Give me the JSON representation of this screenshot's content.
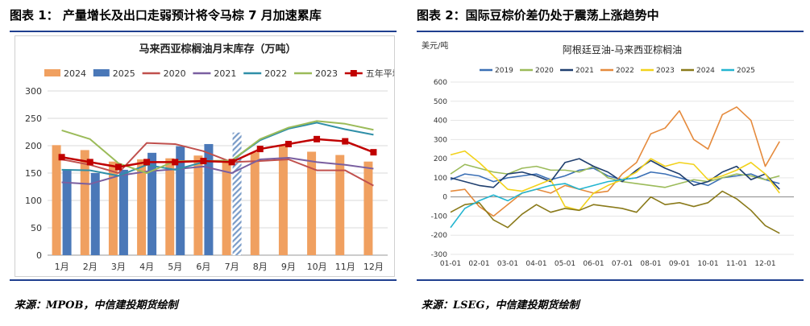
{
  "left": {
    "figure_title": "图表 1：  产量增长及出口走弱预计将令马棕 7 月加速累库",
    "source": "来源：MPOB，中信建投期货绘制",
    "chart_data": {
      "type": "bar",
      "title": "马来西亚棕榈油月末库存（万吨）",
      "categories": [
        "1月",
        "2月",
        "3月",
        "4月",
        "5月",
        "6月",
        "7月",
        "8月",
        "9月",
        "10月",
        "11月",
        "12月"
      ],
      "ylim": [
        0,
        300
      ],
      "yticks": [
        0,
        50,
        100,
        150,
        200,
        250,
        300
      ],
      "grid": true,
      "legend": "top",
      "bar_series": [
        {
          "name": "2024",
          "color": "#f0a060",
          "values": [
            201,
            192,
            171,
            175,
            177,
            182,
            173,
            188,
            200,
            189,
            183,
            171
          ]
        },
        {
          "name": "2025",
          "color": "#4a78b8",
          "values": [
            157,
            150,
            156,
            187,
            199,
            203,
            null,
            null,
            null,
            null,
            null,
            null
          ]
        }
      ],
      "forecast_bar": {
        "category": "7月",
        "value": 224,
        "color": "#7a9cc8"
      },
      "line_series": [
        {
          "name": "2020",
          "color": "#c0504d",
          "values": [
            175,
            165,
            150,
            205,
            203,
            190,
            170,
            172,
            175,
            155,
            155,
            127
          ]
        },
        {
          "name": "2021",
          "color": "#7a5fa0",
          "values": [
            133,
            130,
            145,
            153,
            157,
            162,
            150,
            175,
            178,
            170,
            165,
            158
          ]
        },
        {
          "name": "2022",
          "color": "#2f8fa8",
          "values": [
            156,
            155,
            145,
            165,
            156,
            170,
            173,
            210,
            231,
            242,
            230,
            220
          ]
        },
        {
          "name": "2023",
          "color": "#9bbb59",
          "values": [
            228,
            212,
            168,
            150,
            172,
            172,
            173,
            212,
            233,
            245,
            240,
            229
          ]
        }
      ],
      "avg_series": {
        "name": "五年平均",
        "color": "#c00000",
        "values": [
          179,
          170,
          161,
          170,
          170,
          172,
          170,
          194,
          203,
          212,
          208,
          188
        ]
      }
    }
  },
  "right": {
    "figure_title": "图表 2：国际豆棕价差仍处于震荡上涨趋势中",
    "source": "来源：LSEG，中信建投期货绘制",
    "chart_data": {
      "type": "line",
      "title": "阿根廷豆油-马来西亚棕榈油",
      "ylabel": "美元/吨",
      "ylim": [
        -300,
        600
      ],
      "yticks": [
        -300,
        -200,
        -100,
        0,
        100,
        200,
        300,
        400,
        500,
        600
      ],
      "categories": [
        "01-01",
        "02-01",
        "03-01",
        "04-01",
        "05-01",
        "06-01",
        "07-01",
        "08-01",
        "09-01",
        "10-01",
        "11-01",
        "12-01"
      ],
      "legend": "top",
      "series": [
        {
          "name": "2019",
          "color": "#3a6fb5",
          "x": [
            1,
            1.5,
            2,
            2.5,
            3,
            3.5,
            4,
            4.5,
            5,
            5.5,
            6,
            6.5,
            7,
            7.5,
            8,
            8.5,
            9,
            9.5,
            10,
            10.5,
            11,
            11.5,
            12,
            12.5
          ],
          "y": [
            90,
            120,
            110,
            80,
            100,
            110,
            120,
            90,
            110,
            140,
            150,
            110,
            90,
            100,
            130,
            120,
            100,
            80,
            60,
            100,
            110,
            120,
            90,
            70
          ]
        },
        {
          "name": "2020",
          "color": "#9bbb59",
          "x": [
            1,
            1.5,
            2,
            2.5,
            3,
            3.5,
            4,
            4.5,
            5,
            5.5,
            6,
            6.5,
            7,
            7.5,
            8,
            8.5,
            9,
            9.5,
            10,
            10.5,
            11,
            11.5,
            12,
            12.5
          ],
          "y": [
            120,
            170,
            150,
            130,
            120,
            150,
            160,
            140,
            140,
            130,
            160,
            100,
            80,
            70,
            60,
            50,
            70,
            90,
            80,
            100,
            120,
            110,
            90,
            110
          ]
        },
        {
          "name": "2021",
          "color": "#1f3f6f",
          "x": [
            1,
            1.5,
            2,
            2.5,
            3,
            3.5,
            4,
            4.5,
            5,
            5.5,
            6,
            6.5,
            7,
            7.5,
            8,
            8.5,
            9,
            9.5,
            10,
            10.5,
            11,
            11.5,
            12,
            12.5
          ],
          "y": [
            100,
            80,
            60,
            50,
            120,
            130,
            110,
            80,
            180,
            200,
            160,
            130,
            80,
            140,
            190,
            150,
            120,
            60,
            80,
            130,
            160,
            90,
            120,
            40
          ]
        },
        {
          "name": "2022",
          "color": "#e58a3c",
          "x": [
            1,
            1.5,
            2,
            2.5,
            3,
            3.5,
            4,
            4.5,
            5,
            5.5,
            6,
            6.5,
            7,
            7.5,
            8,
            8.5,
            9,
            9.5,
            10,
            10.5,
            11,
            11.5,
            12,
            12.5
          ],
          "y": [
            30,
            40,
            -50,
            -100,
            -40,
            20,
            40,
            20,
            60,
            40,
            20,
            30,
            120,
            180,
            330,
            360,
            450,
            300,
            250,
            430,
            470,
            400,
            160,
            290
          ]
        },
        {
          "name": "2023",
          "color": "#f2d21b",
          "x": [
            1,
            1.5,
            2,
            2.5,
            3,
            3.5,
            4,
            4.5,
            5,
            5.5,
            6,
            6.5,
            7,
            7.5,
            8,
            8.5,
            9,
            9.5,
            10,
            10.5,
            11,
            11.5,
            12,
            12.5
          ],
          "y": [
            220,
            240,
            180,
            110,
            40,
            30,
            60,
            90,
            -50,
            -70,
            20,
            60,
            90,
            130,
            200,
            160,
            180,
            170,
            90,
            110,
            140,
            180,
            120,
            20
          ]
        },
        {
          "name": "2024",
          "color": "#8a7a1a",
          "x": [
            1,
            1.5,
            2,
            2.5,
            3,
            3.5,
            4,
            4.5,
            5,
            5.5,
            6,
            6.5,
            7,
            7.5,
            8,
            8.5,
            9,
            9.5,
            10,
            10.5,
            11,
            11.5,
            12,
            12.5
          ],
          "y": [
            -80,
            -40,
            -30,
            -120,
            -160,
            -90,
            -40,
            -80,
            -60,
            -70,
            -40,
            -50,
            -60,
            -80,
            0,
            -40,
            -30,
            -50,
            -30,
            30,
            -10,
            -70,
            -150,
            -190
          ]
        },
        {
          "name": "2025",
          "color": "#23b5d0",
          "x": [
            1,
            1.5,
            2,
            2.5,
            3,
            3.5,
            4,
            4.5,
            5,
            5.5,
            6,
            6.5,
            7,
            7.5
          ],
          "y": [
            -160,
            -60,
            -20,
            10,
            -20,
            20,
            40,
            60,
            70,
            40,
            60,
            80,
            90,
            100
          ]
        }
      ]
    }
  }
}
